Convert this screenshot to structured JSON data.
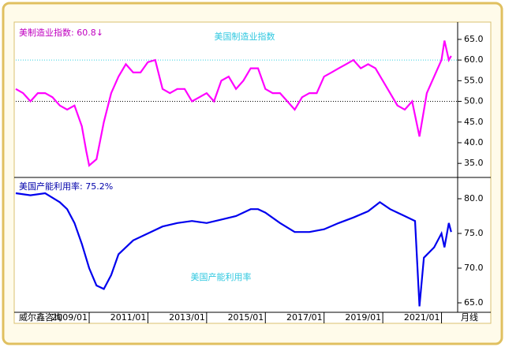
{
  "chart_data": [
    {
      "type": "line",
      "title": "美国制造业指数",
      "annotation": "美制造业指数: 60.8↓",
      "x": [
        2006.5,
        2006.75,
        2007.0,
        2007.25,
        2007.5,
        2007.75,
        2008.0,
        2008.25,
        2008.5,
        2008.75,
        2008.9,
        2009.0,
        2009.25,
        2009.5,
        2009.75,
        2010.0,
        2010.25,
        2010.5,
        2010.75,
        2011.0,
        2011.25,
        2011.5,
        2011.75,
        2012.0,
        2012.25,
        2012.5,
        2012.75,
        2013.0,
        2013.25,
        2013.5,
        2013.75,
        2014.0,
        2014.25,
        2014.5,
        2014.75,
        2015.0,
        2015.25,
        2015.5,
        2015.75,
        2016.0,
        2016.25,
        2016.5,
        2016.75,
        2017.0,
        2017.25,
        2017.5,
        2017.75,
        2018.0,
        2018.25,
        2018.5,
        2018.75,
        2019.0,
        2019.25,
        2019.5,
        2019.75,
        2020.0,
        2020.25,
        2020.5,
        2020.75,
        2021.0,
        2021.1,
        2021.25,
        2021.33
      ],
      "series": [
        {
          "color": "#ff00ff",
          "values": [
            53,
            52,
            50,
            52,
            52,
            51,
            49,
            48,
            49,
            44,
            38,
            34.5,
            36,
            45,
            52,
            56,
            59,
            57,
            57,
            59.5,
            60,
            53,
            52,
            53,
            53,
            50,
            51,
            52,
            50,
            55,
            56,
            53,
            55,
            58,
            58,
            53,
            52,
            52,
            50,
            48,
            51,
            52,
            52,
            56,
            57,
            58,
            59,
            60,
            58,
            59,
            58,
            55,
            52,
            49,
            48,
            50,
            41.5,
            52,
            56,
            60,
            64.7,
            60,
            61
          ]
        }
      ],
      "xlim": [
        2006.5,
        2021.55
      ],
      "ylim": [
        31.6,
        68.8
      ],
      "yticks": [
        {
          "value": 35,
          "label": "35.0"
        },
        {
          "value": 40,
          "label": "40.0"
        },
        {
          "value": 45,
          "label": "45.0"
        },
        {
          "value": 50,
          "label": "50.0"
        },
        {
          "value": 55,
          "label": "55.0"
        },
        {
          "value": 60,
          "label": "60.0"
        },
        {
          "value": 65,
          "label": "65.0"
        }
      ],
      "reference_lines": [
        {
          "value": 60,
          "color": "#30d0e0"
        },
        {
          "value": 50,
          "color": "#000000"
        }
      ]
    },
    {
      "type": "line",
      "title": "美国产能利用率",
      "annotation": "美国产能利用率: 75.2%",
      "x": [
        2006.5,
        2007.0,
        2007.5,
        2008.0,
        2008.25,
        2008.5,
        2008.75,
        2009.0,
        2009.25,
        2009.5,
        2009.75,
        2010.0,
        2010.5,
        2011.0,
        2011.5,
        2012.0,
        2012.5,
        2013.0,
        2013.5,
        2014.0,
        2014.5,
        2014.75,
        2015.0,
        2015.5,
        2016.0,
        2016.5,
        2017.0,
        2017.5,
        2018.0,
        2018.5,
        2018.9,
        2019.25,
        2019.75,
        2020.1,
        2020.25,
        2020.4,
        2020.75,
        2021.0,
        2021.1,
        2021.25,
        2021.33
      ],
      "series": [
        {
          "color": "#0000ee",
          "values": [
            80.8,
            80.5,
            80.8,
            79.5,
            78.5,
            76.5,
            73.5,
            70,
            67.5,
            67,
            69,
            72,
            74,
            75,
            76,
            76.5,
            76.8,
            76.5,
            77,
            77.5,
            78.5,
            78.5,
            78,
            76.5,
            75.2,
            75.2,
            75.6,
            76.5,
            77.3,
            78.2,
            79.5,
            78.5,
            77.5,
            76.8,
            64.5,
            71.5,
            73,
            75,
            73,
            76.5,
            75.2
          ]
        }
      ],
      "xlim": [
        2006.5,
        2021.55
      ],
      "ylim": [
        63.75,
        83.07
      ],
      "yticks": [
        {
          "value": 65,
          "label": "65.0"
        },
        {
          "value": 70,
          "label": "70.0"
        },
        {
          "value": 75,
          "label": "75.0"
        },
        {
          "value": 80,
          "label": "80.0"
        }
      ],
      "xticks": [
        {
          "value": 2009,
          "label": "2009/01"
        },
        {
          "value": 2011,
          "label": "2011/01"
        },
        {
          "value": 2013,
          "label": "2013/01"
        },
        {
          "value": 2015,
          "label": "2015/01"
        },
        {
          "value": 2017,
          "label": "2017/01"
        },
        {
          "value": 2019,
          "label": "2019/01"
        },
        {
          "value": 2021,
          "label": "2021/01"
        }
      ]
    }
  ],
  "footer": {
    "source": "威尔鑫咨询",
    "period": "月线"
  }
}
